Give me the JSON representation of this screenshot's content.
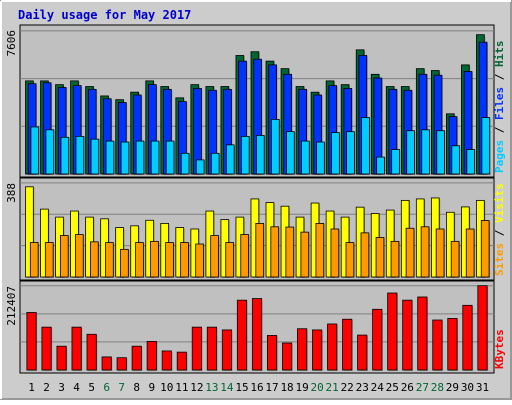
{
  "chart_data": {
    "type": "bar",
    "title": "Daily usage for May 2017",
    "categories": [
      "1",
      "2",
      "3",
      "4",
      "5",
      "6",
      "7",
      "8",
      "9",
      "10",
      "11",
      "12",
      "13",
      "14",
      "15",
      "16",
      "17",
      "18",
      "19",
      "20",
      "21",
      "22",
      "23",
      "24",
      "25",
      "26",
      "27",
      "28",
      "29",
      "30",
      "31"
    ],
    "weekend_days": [
      "6",
      "7",
      "13",
      "14",
      "20",
      "21",
      "27",
      "28"
    ],
    "panels": [
      {
        "id": "hits",
        "ymax_label": "7606",
        "ymax": 7606,
        "series": [
          {
            "name": "Hits",
            "color": "#006633",
            "values": [
              4950,
              4950,
              4750,
              4950,
              4650,
              4150,
              3950,
              4350,
              4950,
              4650,
              4050,
              4750,
              4650,
              4650,
              6300,
              6500,
              6000,
              5600,
              4650,
              4350,
              4950,
              4750,
              6600,
              5300,
              4650,
              4650,
              5600,
              5500,
              3200,
              5800,
              7406
            ]
          },
          {
            "name": "Files",
            "color": "#0033ff",
            "values": [
              4800,
              4850,
              4600,
              4700,
              4500,
              4000,
              3800,
              4200,
              4750,
              4500,
              3850,
              4550,
              4450,
              4500,
              6000,
              6100,
              5800,
              5300,
              4500,
              4200,
              4700,
              4550,
              6300,
              5100,
              4500,
              4450,
              5300,
              5250,
              3050,
              5450,
              7006
            ]
          },
          {
            "name": "Pages",
            "color": "#00ccff",
            "values": [
              2500,
              2350,
              1950,
              2000,
              1850,
              1750,
              1700,
              1750,
              1750,
              1750,
              1100,
              750,
              1100,
              1550,
              2000,
              2050,
              2900,
              2250,
              1750,
              1700,
              2200,
              2250,
              3000,
              900,
              1300,
              2300,
              2350,
              2300,
              1500,
              1300,
              3000
            ]
          }
        ]
      },
      {
        "id": "visits",
        "ymax_label": "388",
        "ymax": 388,
        "series": [
          {
            "name": "Visits",
            "color": "#ffff00",
            "values": [
              372,
              280,
              247,
              272,
              247,
              240,
              204,
              211,
              234,
              221,
              204,
              198,
              272,
              237,
              247,
              322,
              307,
              292,
              247,
              305,
              272,
              247,
              288,
              262,
              276,
              316,
              322,
              326,
              267,
              289,
              316
            ]
          },
          {
            "name": "Sites",
            "color": "#ff9900",
            "values": [
              142,
              142,
              171,
              175,
              145,
              142,
              114,
              142,
              147,
              142,
              142,
              136,
              171,
              142,
              175,
              221,
              207,
              206,
              185,
              221,
              198,
              142,
              182,
              163,
              147,
              201,
              207,
              198,
              147,
              198,
              233
            ]
          }
        ]
      },
      {
        "id": "kbytes",
        "ymax_label": "212407",
        "ymax": 212407,
        "series": [
          {
            "name": "KBytes",
            "color": "#ff0000",
            "values": [
              145000,
              108000,
              60000,
              108000,
              90000,
              33000,
              31000,
              60000,
              72000,
              48000,
              45000,
              108000,
              108000,
              101000,
              176000,
              180000,
              87000,
              68000,
              104000,
              101000,
              116000,
              128000,
              88000,
              153000,
              194000,
              176000,
              184000,
              126000,
              130000,
              163000,
              212407
            ]
          }
        ]
      }
    ],
    "legend": {
      "hits_panel": [
        "Pages",
        "Files",
        "Hits"
      ],
      "visits_panel": [
        "Sites",
        "Visits"
      ],
      "kbytes_panel": [
        "KBytes"
      ]
    },
    "grid": true
  }
}
